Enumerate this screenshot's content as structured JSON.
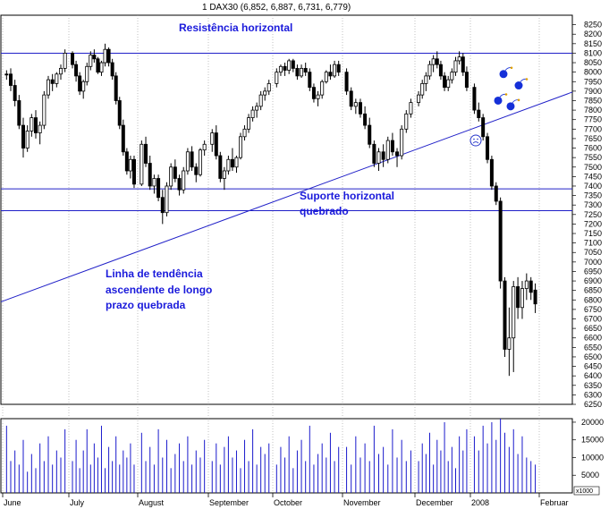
{
  "chart_data": {
    "type": "candlestick",
    "title": "1 DAX30 (6,852, 6,887, 6,731, 6,779)",
    "colors": {
      "price": "#000000",
      "lines": "#2020c8",
      "annotation": "#1a1adb",
      "grid": "#9a9a9a",
      "volume": "#1a1acc"
    },
    "price_axis": {
      "range": [
        6250,
        8300
      ],
      "ticks": [
        8250,
        8200,
        8150,
        8100,
        8050,
        8000,
        7950,
        7900,
        7850,
        7800,
        7750,
        7700,
        7650,
        7600,
        7550,
        7500,
        7450,
        7400,
        7350,
        7300,
        7250,
        7200,
        7150,
        7100,
        7050,
        7000,
        6950,
        6900,
        6850,
        6800,
        6750,
        6700,
        6650,
        6600,
        6550,
        6500,
        6450,
        6400,
        6350,
        6300,
        6250
      ]
    },
    "volume_axis": {
      "range": [
        0,
        21000
      ],
      "ticks": [
        20000,
        15000,
        10000,
        5000
      ],
      "multiplier_label": "x1000"
    },
    "months": [
      "June",
      "July",
      "August",
      "September",
      "October",
      "November",
      "December",
      "2008",
      "Februar"
    ],
    "horizontal_lines": [
      {
        "label": "Resistência horizontal",
        "value": 8100
      },
      {
        "label": "Suporte horizontal",
        "value": 7385
      },
      {
        "label": "",
        "value": 7270
      }
    ],
    "trendline": {
      "label": "Linha de tendência ascendente de longo prazo quebrada",
      "points": [
        [
          "June",
          6790
        ],
        [
          "Februar",
          7895
        ]
      ]
    },
    "annotations": {
      "resistance": "Resistência horizontal",
      "support_line1": "Suporte horizontal",
      "support_line2": "quebrado",
      "trend_line1": "Linha de tendência",
      "trend_line2": "ascendente de longo",
      "trend_line3": "prazo quebrada"
    },
    "price_series": [
      {
        "month": "June",
        "ohlc": [
          [
            7990,
            8010,
            7960,
            7985
          ],
          [
            7990,
            8020,
            7900,
            7930
          ],
          [
            7930,
            7960,
            7820,
            7850
          ],
          [
            7850,
            7880,
            7700,
            7720
          ],
          [
            7720,
            7760,
            7550,
            7600
          ],
          [
            7600,
            7720,
            7580,
            7690
          ],
          [
            7690,
            7780,
            7660,
            7760
          ],
          [
            7760,
            7800,
            7650,
            7680
          ],
          [
            7680,
            7740,
            7620,
            7720
          ],
          [
            7720,
            7900,
            7700,
            7880
          ],
          [
            7880,
            7980,
            7860,
            7960
          ],
          [
            7960,
            7990,
            7900,
            7940
          ],
          [
            7940,
            8000,
            7920,
            7990
          ],
          [
            7990,
            8040,
            7960,
            8020
          ],
          [
            8020,
            8120,
            8000,
            8100
          ]
        ]
      },
      {
        "month": "July",
        "ohlc": [
          [
            8100,
            8110,
            8020,
            8040
          ],
          [
            8040,
            8060,
            7950,
            7980
          ],
          [
            7980,
            8000,
            7880,
            7900
          ],
          [
            7900,
            7960,
            7860,
            7950
          ],
          [
            7950,
            8050,
            7930,
            8030
          ],
          [
            8030,
            8110,
            8010,
            8090
          ],
          [
            8090,
            8120,
            8050,
            8070
          ],
          [
            8070,
            8080,
            7990,
            8000
          ],
          [
            8000,
            8060,
            7980,
            8050
          ],
          [
            8050,
            8150,
            8030,
            8120
          ],
          [
            8120,
            8130,
            8030,
            8050
          ],
          [
            8050,
            8070,
            7960,
            7980
          ],
          [
            7980,
            8000,
            7830,
            7850
          ],
          [
            7850,
            7870,
            7700,
            7720
          ],
          [
            7720,
            7750,
            7560,
            7580
          ],
          [
            7580,
            7600,
            7460,
            7480
          ],
          [
            7480,
            7560,
            7440,
            7540
          ],
          [
            7540,
            7560,
            7390,
            7410
          ]
        ]
      },
      {
        "month": "August",
        "ohlc": [
          [
            7410,
            7640,
            7400,
            7620
          ],
          [
            7620,
            7660,
            7500,
            7520
          ],
          [
            7520,
            7560,
            7380,
            7400
          ],
          [
            7400,
            7460,
            7360,
            7440
          ],
          [
            7440,
            7460,
            7320,
            7340
          ],
          [
            7340,
            7380,
            7200,
            7260
          ],
          [
            7260,
            7420,
            7240,
            7400
          ],
          [
            7400,
            7520,
            7380,
            7500
          ],
          [
            7500,
            7540,
            7420,
            7440
          ],
          [
            7440,
            7460,
            7350,
            7380
          ],
          [
            7380,
            7500,
            7360,
            7480
          ],
          [
            7480,
            7600,
            7460,
            7580
          ],
          [
            7580,
            7610,
            7480,
            7500
          ],
          [
            7500,
            7520,
            7420,
            7460
          ],
          [
            7460,
            7600,
            7450,
            7590
          ],
          [
            7590,
            7640,
            7560,
            7620
          ]
        ]
      },
      {
        "month": "September",
        "ohlc": [
          [
            7620,
            7700,
            7580,
            7680
          ],
          [
            7680,
            7720,
            7540,
            7560
          ],
          [
            7560,
            7580,
            7420,
            7440
          ],
          [
            7440,
            7500,
            7380,
            7480
          ],
          [
            7480,
            7560,
            7460,
            7540
          ],
          [
            7540,
            7600,
            7480,
            7500
          ],
          [
            7500,
            7560,
            7470,
            7550
          ],
          [
            7550,
            7680,
            7540,
            7660
          ],
          [
            7660,
            7720,
            7640,
            7700
          ],
          [
            7700,
            7780,
            7680,
            7760
          ],
          [
            7760,
            7820,
            7740,
            7800
          ],
          [
            7800,
            7840,
            7760,
            7820
          ],
          [
            7820,
            7900,
            7800,
            7880
          ],
          [
            7880,
            7920,
            7850,
            7900
          ],
          [
            7900,
            7960,
            7880,
            7940
          ]
        ]
      },
      {
        "month": "October",
        "ohlc": [
          [
            7940,
            8020,
            7920,
            8000
          ],
          [
            8000,
            8040,
            7980,
            8030
          ],
          [
            8030,
            8050,
            7980,
            8010
          ],
          [
            8010,
            8070,
            7990,
            8060
          ],
          [
            8060,
            8070,
            8000,
            8020
          ],
          [
            8020,
            8040,
            7960,
            7980
          ],
          [
            7980,
            8040,
            7970,
            8020
          ],
          [
            8020,
            8050,
            7980,
            8000
          ],
          [
            8000,
            8020,
            7900,
            7920
          ],
          [
            7920,
            7940,
            7840,
            7860
          ],
          [
            7860,
            7900,
            7820,
            7880
          ],
          [
            7880,
            7960,
            7860,
            7950
          ],
          [
            7950,
            8010,
            7940,
            8000
          ],
          [
            8000,
            8040,
            7960,
            7980
          ],
          [
            7980,
            8060,
            7970,
            8040
          ],
          [
            8040,
            8060,
            7980,
            8000
          ]
        ]
      },
      {
        "month": "November",
        "ohlc": [
          [
            8000,
            8020,
            7880,
            7900
          ],
          [
            7900,
            7920,
            7800,
            7820
          ],
          [
            7820,
            7860,
            7780,
            7840
          ],
          [
            7840,
            7860,
            7760,
            7780
          ],
          [
            7780,
            7820,
            7700,
            7720
          ],
          [
            7720,
            7760,
            7600,
            7620
          ],
          [
            7620,
            7640,
            7500,
            7520
          ],
          [
            7520,
            7600,
            7480,
            7580
          ],
          [
            7580,
            7620,
            7500,
            7540
          ],
          [
            7540,
            7660,
            7520,
            7640
          ],
          [
            7640,
            7680,
            7560,
            7580
          ],
          [
            7580,
            7600,
            7500,
            7560
          ],
          [
            7560,
            7720,
            7540,
            7700
          ],
          [
            7700,
            7800,
            7680,
            7780
          ],
          [
            7780,
            7860,
            7760,
            7840
          ]
        ]
      },
      {
        "month": "December",
        "ohlc": [
          [
            7840,
            7900,
            7820,
            7880
          ],
          [
            7880,
            7960,
            7860,
            7940
          ],
          [
            7940,
            8000,
            7900,
            7980
          ],
          [
            7980,
            8060,
            7960,
            8040
          ],
          [
            8040,
            8090,
            8000,
            8070
          ],
          [
            8070,
            8110,
            8020,
            8040
          ],
          [
            8040,
            8060,
            7960,
            7980
          ],
          [
            7980,
            8000,
            7900,
            7920
          ],
          [
            7920,
            7980,
            7900,
            7960
          ],
          [
            7960,
            8020,
            7940,
            8000
          ],
          [
            8000,
            8080,
            7980,
            8060
          ],
          [
            8060,
            8110,
            8040,
            8080
          ],
          [
            8080,
            8100,
            7980,
            8000
          ],
          [
            8000,
            8030,
            7900,
            7920
          ]
        ]
      },
      {
        "month": "2008",
        "ohlc": [
          [
            7920,
            7940,
            7780,
            7800
          ],
          [
            7800,
            7840,
            7740,
            7760
          ],
          [
            7760,
            7780,
            7640,
            7660
          ],
          [
            7660,
            7680,
            7520,
            7540
          ],
          [
            7540,
            7560,
            7380,
            7400
          ],
          [
            7400,
            7420,
            7300,
            7320
          ],
          [
            7320,
            7340,
            6860,
            6900
          ],
          [
            6900,
            6920,
            6500,
            6540
          ],
          [
            6540,
            6760,
            6400,
            6600
          ],
          [
            6600,
            6900,
            6420,
            6870
          ],
          [
            6870,
            6920,
            6700,
            6760
          ],
          [
            6760,
            6900,
            6700,
            6860
          ],
          [
            6860,
            6940,
            6800,
            6900
          ],
          [
            6900,
            6920,
            6800,
            6840
          ],
          [
            6852,
            6887,
            6731,
            6779
          ]
        ]
      }
    ],
    "volume_series": [
      {
        "month": "June",
        "values": [
          19000,
          9000,
          12000,
          8000,
          15000,
          6000,
          11000,
          7000,
          14000,
          9000,
          16000,
          8000,
          12000,
          10000,
          18000
        ]
      },
      {
        "month": "July",
        "values": [
          9000,
          15000,
          7000,
          12000,
          18000,
          8000,
          14000,
          10000,
          19000,
          7000,
          13000,
          9000,
          16000,
          8000,
          12000,
          10000,
          14000,
          8000
        ]
      },
      {
        "month": "August",
        "values": [
          17000,
          9000,
          13000,
          8000,
          18000,
          10000,
          15000,
          7000,
          11000,
          14000,
          9000,
          16000,
          8000,
          12000,
          10000,
          15000
        ]
      },
      {
        "month": "September",
        "values": [
          9000,
          14000,
          8000,
          13000,
          16000,
          10000,
          12000,
          7000,
          15000,
          9000,
          18000,
          8000,
          13000,
          11000,
          14000
        ]
      },
      {
        "month": "October",
        "values": [
          8000,
          13000,
          10000,
          16000,
          7000,
          12000,
          15000,
          9000,
          19000,
          8000,
          11000,
          14000,
          10000,
          17000,
          9000,
          13000
        ]
      },
      {
        "month": "November",
        "values": [
          13000,
          8000,
          16000,
          10000,
          14000,
          9000,
          19000,
          11000,
          13000,
          8000,
          18000,
          10000,
          15000,
          9000,
          12000
        ]
      },
      {
        "month": "December",
        "values": [
          9000,
          14000,
          11000,
          17000,
          8000,
          15000,
          12000,
          20000,
          9000,
          13000,
          7000,
          16000,
          12000,
          18000
        ]
      },
      {
        "month": "2008",
        "values": [
          16000,
          12000,
          19000,
          14000,
          20000,
          15000,
          21000,
          17000,
          13000,
          18000,
          11000,
          16000,
          10000,
          9000,
          8000
        ]
      }
    ],
    "emoticons": {
      "bombs": [
        [
          7990,
          "2008"
        ],
        [
          7930,
          "2008"
        ],
        [
          7850,
          "2008"
        ],
        [
          7820,
          "2008"
        ]
      ],
      "sad_face": [
        7640,
        "2008"
      ]
    }
  }
}
